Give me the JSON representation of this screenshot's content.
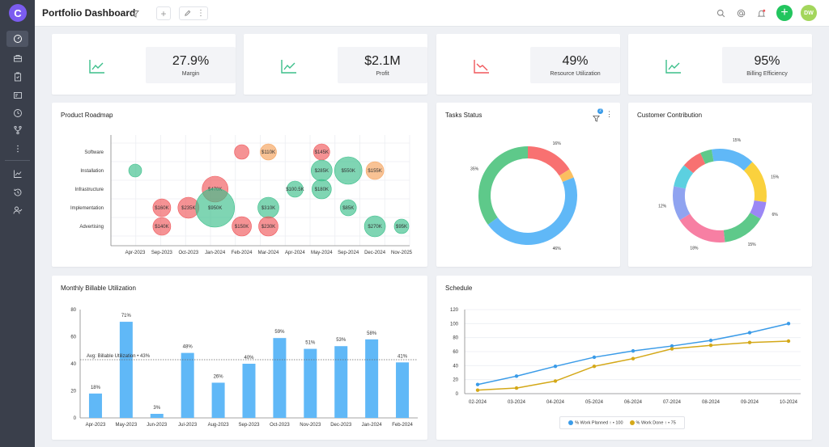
{
  "header": {
    "title": "Portfolio Dashboard",
    "avatar": "DW"
  },
  "sidebar": {
    "items": [
      "dashboard-icon",
      "briefcase-icon",
      "clipboard-icon",
      "id-card-icon",
      "clock-icon",
      "branch-icon",
      "more-icon",
      "chart-icon",
      "history-icon",
      "user-check-icon"
    ]
  },
  "kpis": [
    {
      "value": "27.9%",
      "label": "Margin",
      "trend": "up",
      "color": "#3bbf8a"
    },
    {
      "value": "$2.1M",
      "label": "Profit",
      "trend": "up",
      "color": "#3bbf8a"
    },
    {
      "value": "49%",
      "label": "Resource Utilization",
      "trend": "down",
      "color": "#f0575b"
    },
    {
      "value": "95%",
      "label": "Billing Efficiency",
      "trend": "up",
      "color": "#3bbf8a"
    }
  ],
  "cards": {
    "roadmap": "Product Roadmap",
    "tasks": "Tasks Status",
    "tasks_badge": "2",
    "customer": "Customer Contribution",
    "billable": "Monthly Billable Utilization",
    "schedule": "Schedule"
  },
  "chart_data": [
    {
      "type": "scatter",
      "name": "roadmap",
      "x_labels": [
        "Apr-2023",
        "Sep-2023",
        "Oct-2023",
        "Jan-2024",
        "Feb-2024",
        "Mar-2024",
        "Apr-2024",
        "May-2024",
        "Sep-2024",
        "Dec-2024",
        "Nov-2025"
      ],
      "y_labels": [
        "Software",
        "Installation",
        "Infrastructure",
        "Implementation",
        "Advertising"
      ],
      "bubbles": [
        {
          "x": 0,
          "y": "Installation",
          "size": 8,
          "color": "#3bbf8a",
          "label": ""
        },
        {
          "x": 1,
          "y": "Implementation",
          "size": 11,
          "color": "#f0575b",
          "label": "$160K"
        },
        {
          "x": 1,
          "y": "Advertising",
          "size": 11,
          "color": "#f0575b",
          "label": "$140K"
        },
        {
          "x": 2,
          "y": "Implementation",
          "size": 13,
          "color": "#f0575b",
          "label": "$235K"
        },
        {
          "x": 3,
          "y": "Infrastructure",
          "size": 16,
          "color": "#f0575b",
          "label": "$470K"
        },
        {
          "x": 3,
          "y": "Implementation",
          "size": 24,
          "color": "#3bbf8a",
          "label": "$950K"
        },
        {
          "x": 4,
          "y": "Software",
          "size": 9,
          "color": "#f0575b",
          "label": ""
        },
        {
          "x": 4,
          "y": "Advertising",
          "size": 12,
          "color": "#f0575b",
          "label": "$150K"
        },
        {
          "x": 5,
          "y": "Software",
          "size": 10,
          "color": "#f5a25b",
          "label": "$110K"
        },
        {
          "x": 5,
          "y": "Implementation",
          "size": 13,
          "color": "#3bbf8a",
          "label": "$310K"
        },
        {
          "x": 5,
          "y": "Advertising",
          "size": 12,
          "color": "#f0575b",
          "label": "$230K"
        },
        {
          "x": 6,
          "y": "Infrastructure",
          "size": 10,
          "color": "#3bbf8a",
          "label": "$100.5K"
        },
        {
          "x": 7,
          "y": "Software",
          "size": 10,
          "color": "#f0575b",
          "label": "$145K"
        },
        {
          "x": 7,
          "y": "Installation",
          "size": 13,
          "color": "#3bbf8a",
          "label": "$285K"
        },
        {
          "x": 7,
          "y": "Infrastructure",
          "size": 12,
          "color": "#3bbf8a",
          "label": "$180K"
        },
        {
          "x": 8,
          "y": "Installation",
          "size": 17,
          "color": "#3bbf8a",
          "label": "$550K"
        },
        {
          "x": 8,
          "y": "Implementation",
          "size": 10,
          "color": "#3bbf8a",
          "label": "$85K"
        },
        {
          "x": 9,
          "y": "Installation",
          "size": 11,
          "color": "#f5a25b",
          "label": "$155K"
        },
        {
          "x": 9,
          "y": "Advertising",
          "size": 13,
          "color": "#3bbf8a",
          "label": "$270K"
        },
        {
          "x": 10,
          "y": "Advertising",
          "size": 9,
          "color": "#3bbf8a",
          "label": "$95K"
        }
      ]
    },
    {
      "type": "pie",
      "name": "tasks",
      "donut": true,
      "slices": [
        {
          "value": 16,
          "label": "16%",
          "color": "#f87171"
        },
        {
          "value": 3,
          "label": "",
          "color": "#fbbf60"
        },
        {
          "value": 46,
          "label": "46%",
          "color": "#60b8f7"
        },
        {
          "value": 35,
          "label": "35%",
          "color": "#5ec98a"
        }
      ]
    },
    {
      "type": "pie",
      "name": "customer",
      "donut": true,
      "slices": [
        {
          "value": 15,
          "label": "15%",
          "color": "#60b8f7"
        },
        {
          "value": 15,
          "label": "15%",
          "color": "#fad13d"
        },
        {
          "value": 6,
          "label": "6%",
          "color": "#9b87f5"
        },
        {
          "value": 15,
          "label": "15%",
          "color": "#5ec98a"
        },
        {
          "value": 18,
          "label": "18%",
          "color": "#f77fa3"
        },
        {
          "value": 12,
          "label": "12%",
          "color": "#8fa3f0"
        },
        {
          "value": 8,
          "label": "",
          "color": "#5cd0e0"
        },
        {
          "value": 7,
          "label": "",
          "color": "#f87171"
        },
        {
          "value": 4,
          "label": "",
          "color": "#5ec98a"
        }
      ]
    },
    {
      "type": "bar",
      "name": "billable",
      "categories": [
        "Apr-2023",
        "May-2023",
        "Jun-2023",
        "Jul-2023",
        "Aug-2023",
        "Sep-2023",
        "Oct-2023",
        "Nov-2023",
        "Dec-2023",
        "Jan-2024",
        "Feb-2024"
      ],
      "values": [
        18,
        71,
        3,
        48,
        26,
        40,
        59,
        51,
        53,
        58,
        41
      ],
      "ylim": [
        0,
        80
      ],
      "yticks": [
        0,
        20,
        40,
        60,
        80
      ],
      "avg_label": "Avg: Billable Utilization • 43%",
      "avg": 43,
      "color": "#60b8f7"
    },
    {
      "type": "line",
      "name": "schedule",
      "x": [
        "02-2024",
        "03-2024",
        "04-2024",
        "05-2024",
        "06-2024",
        "07-2024",
        "08-2024",
        "09-2024",
        "10-2024"
      ],
      "ylim": [
        0,
        120
      ],
      "yticks": [
        0,
        20,
        40,
        60,
        80,
        100,
        120
      ],
      "series": [
        {
          "name": "% Work Planned ↑ • 100",
          "color": "#3a9be8",
          "values": [
            13,
            25,
            39,
            52,
            61,
            68,
            76,
            87,
            100
          ]
        },
        {
          "name": "% Work Done ↑ • 75",
          "color": "#d4a818",
          "values": [
            5,
            8,
            18,
            39,
            50,
            64,
            69,
            73,
            75
          ]
        }
      ]
    }
  ]
}
